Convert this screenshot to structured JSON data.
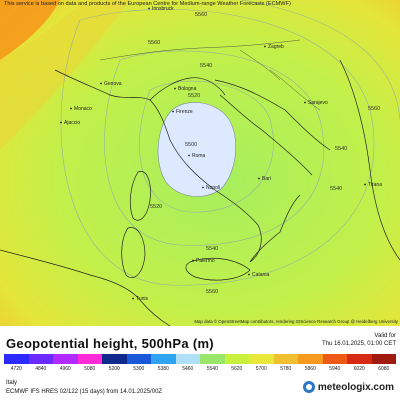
{
  "map": {
    "notice": "This service is based on data and products of the European Centre for Medium-range Weather Forecasts (ECMWF)",
    "attribution": "Map data © OpenStreetMap contributors, rendering GIScience Research Group @ Heidelberg University",
    "cities": [
      {
        "name": "Innsbruck"
      },
      {
        "name": "Zagreb"
      },
      {
        "name": "Genova"
      },
      {
        "name": "Bologna"
      },
      {
        "name": "Monaco"
      },
      {
        "name": "Firenze"
      },
      {
        "name": "Sarajevo"
      },
      {
        "name": "Ajaccio"
      },
      {
        "name": "Roma"
      },
      {
        "name": "Tirana"
      },
      {
        "name": "Napoli"
      },
      {
        "name": "Bari"
      },
      {
        "name": "Palermo"
      },
      {
        "name": "Catania"
      },
      {
        "name": "Tunis"
      }
    ],
    "contour_labels": [
      "5560",
      "5560",
      "5540",
      "5520",
      "5500",
      "5520",
      "5540",
      "5540",
      "5560",
      "5560",
      "5540"
    ],
    "colors": {
      "low": "#dde9ff",
      "mid": "#a8f05c",
      "high": "#e0e83a",
      "orange": "#f59a1c"
    }
  },
  "legend": {
    "title": "Geopotential height, 500hPa (m)",
    "ticks": [
      "4720",
      "4840",
      "4960",
      "5080",
      "5200",
      "5300",
      "5380",
      "5460",
      "5540",
      "5620",
      "5700",
      "5780",
      "5860",
      "5940",
      "6020",
      "6080"
    ],
    "colors": [
      "#2b2bff",
      "#6b2bff",
      "#b12bff",
      "#ff2bd6",
      "#0f2a8c",
      "#1a58d8",
      "#2ea4f0",
      "#b0e0f8",
      "#9ae66a",
      "#c8f03c",
      "#e8e83a",
      "#f0c030",
      "#f59a1c",
      "#ee5a16",
      "#d72a14",
      "#a01a10"
    ]
  },
  "valid": {
    "label": "Valid for",
    "time": "Thu 16.01.2025, 01:00 CET"
  },
  "info": {
    "region": "Italy",
    "model": "ECMWF IFS HRES 02/122 (15 days) from 14.01.2025/00Z"
  },
  "brand": {
    "name": "meteologix.com"
  }
}
